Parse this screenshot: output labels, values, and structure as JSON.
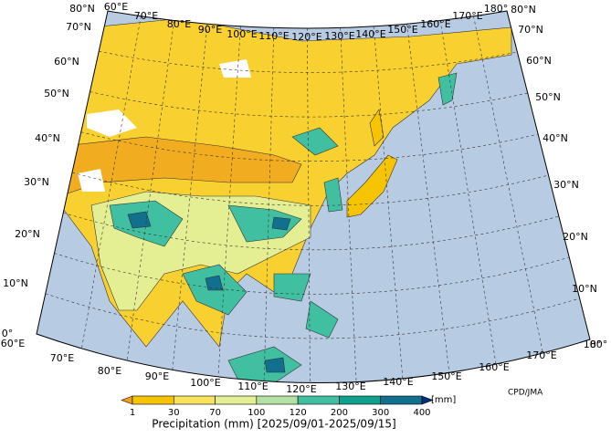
{
  "map": {
    "lon_labels_top": [
      "60°E",
      "70°E",
      "80°E",
      "90°E",
      "100°E",
      "110°E",
      "120°E",
      "130°E",
      "140°E",
      "150°E",
      "160°E",
      "170°E",
      "180°"
    ],
    "lon_labels_bottom": [
      "60°E",
      "70°E",
      "80°E",
      "90°E",
      "100°E",
      "110°E",
      "120°E",
      "130°E",
      "140°E",
      "150°E",
      "160°E",
      "170°E",
      "180°"
    ],
    "lat_labels_left": [
      "80°N",
      "70°N",
      "60°N",
      "50°N",
      "40°N",
      "30°N",
      "20°N",
      "10°N",
      "0°"
    ],
    "lat_labels_right": [
      "80°N",
      "70°N",
      "60°N",
      "50°N",
      "40°N",
      "30°N",
      "20°N",
      "10°N",
      "0°"
    ],
    "colorbar": {
      "ticks": [
        1,
        30,
        70,
        100,
        120,
        200,
        300,
        400
      ],
      "colors": [
        "#f0a020",
        "#f6c400",
        "#f8e45a",
        "#e4ef94",
        "#b4e0a4",
        "#40c0a0",
        "#10a08c",
        "#10708e",
        "#04307c"
      ],
      "unit": "[mm]"
    },
    "caption": "Precipitation (mm) [2025/09/01-2025/09/15]",
    "credit": "CPD/JMA"
  }
}
